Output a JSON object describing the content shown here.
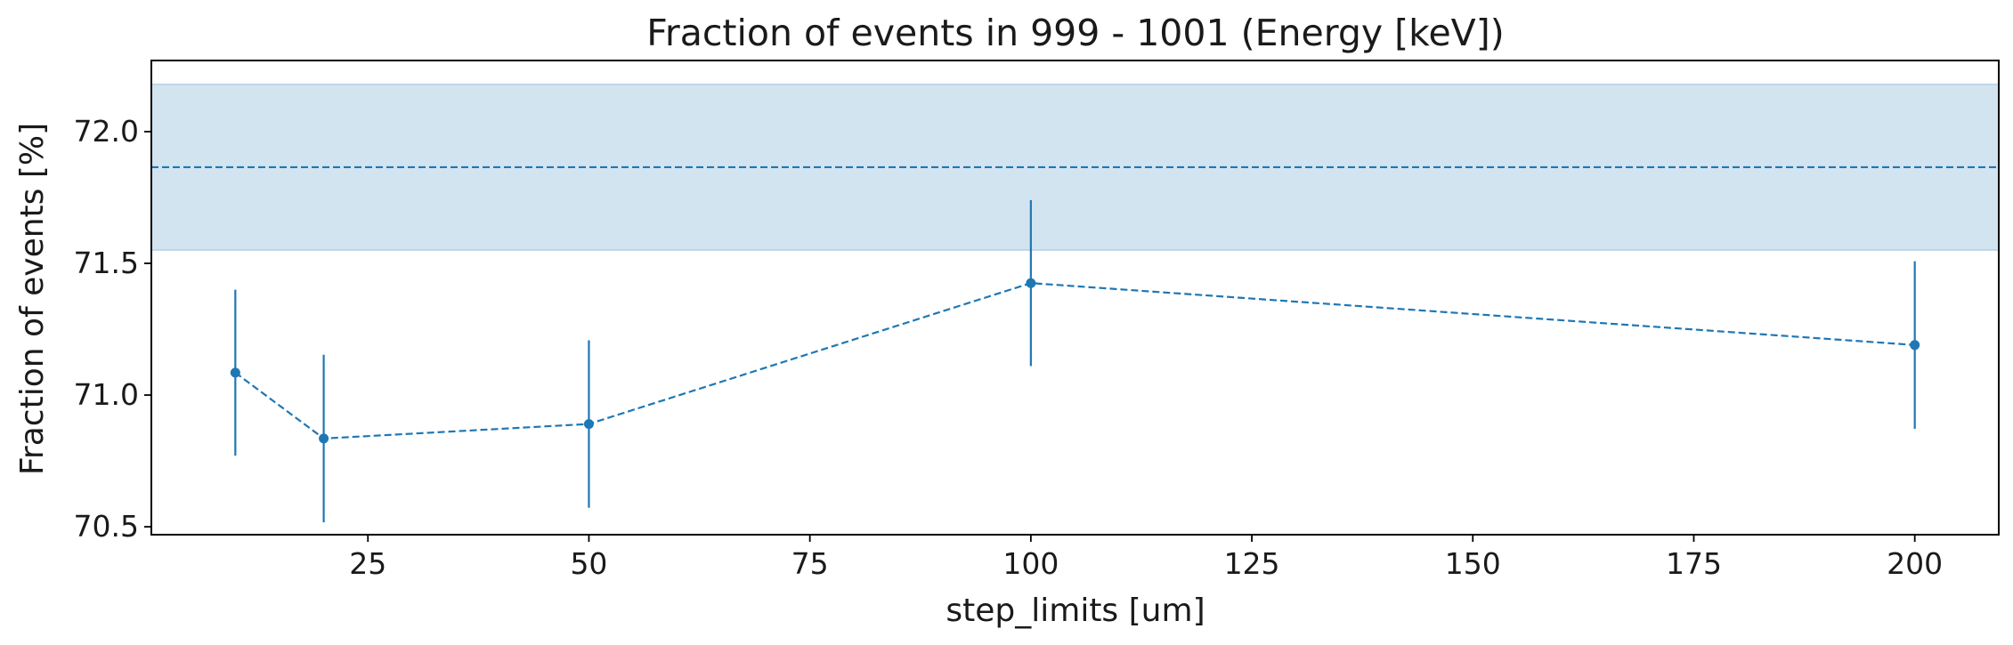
{
  "chart_data": {
    "type": "line",
    "title": "Fraction of events in 999 - 1001 (Energy [keV])",
    "xlabel": "step_limits [um]",
    "ylabel": "Fraction of events [%]",
    "xlim": [
      0.5,
      209.5
    ],
    "ylim": [
      70.47,
      72.27
    ],
    "xticks": [
      25,
      50,
      75,
      100,
      125,
      150,
      175,
      200
    ],
    "yticks": [
      70.5,
      71.0,
      71.5,
      72.0
    ],
    "xtick_labels": [
      "25",
      "50",
      "75",
      "100",
      "125",
      "150",
      "175",
      "200"
    ],
    "ytick_labels": [
      "70.5",
      "71.0",
      "71.5",
      "72.0"
    ],
    "grid": false,
    "series": [
      {
        "x": [
          10,
          20,
          50,
          100,
          200
        ],
        "y": [
          71.085,
          70.835,
          70.89,
          71.425,
          71.19
        ],
        "yerr": [
          0.315,
          0.318,
          0.318,
          0.315,
          0.318
        ],
        "color": "#1f77b4",
        "linestyle": "dashed",
        "marker": "circle"
      }
    ],
    "reference": {
      "value": 71.865,
      "band": [
        71.55,
        72.18
      ],
      "color": "#1f77b4",
      "linestyle": "dashed"
    }
  }
}
